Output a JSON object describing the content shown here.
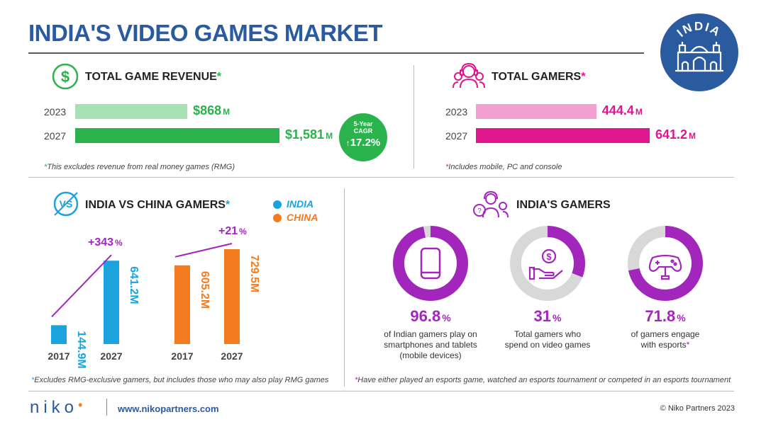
{
  "header": {
    "title": "INDIA'S VIDEO GAMES MARKET",
    "badge_label": "INDIA"
  },
  "revenue": {
    "title": "TOTAL GAME REVENUE",
    "asterisk": "*",
    "years": [
      "2023",
      "2027"
    ],
    "labels": [
      "$868",
      "$1,581"
    ],
    "unit": "M",
    "cagr_label": "5-Year CAGR",
    "cagr_value": "17.2%",
    "note_asterisk": "*",
    "note": "This excludes revenue from real money games (RMG)"
  },
  "gamers": {
    "title": "TOTAL GAMERS",
    "asterisk": "*",
    "years": [
      "2023",
      "2027"
    ],
    "labels": [
      "444.4",
      "641.2"
    ],
    "unit": "M",
    "note_asterisk": "*",
    "note": "Includes mobile, PC and console"
  },
  "vs": {
    "title": "INDIA VS CHINA GAMERS",
    "asterisk": "*",
    "legend": [
      "INDIA",
      "CHINA"
    ],
    "india_growth": "+343",
    "china_growth": "+21",
    "growth_unit": "%",
    "note_asterisk": "*",
    "note": "Excludes RMG-exclusive gamers, but includes those who may also play RMG games"
  },
  "india_gamers": {
    "title": "INDIA'S GAMERS",
    "stats": [
      {
        "value": "96.8",
        "unit": "%",
        "text": [
          "of Indian gamers play on",
          "smartphones and tablets",
          "(mobile devices)"
        ],
        "asterisk": ""
      },
      {
        "value": "31",
        "unit": "%",
        "text": [
          "Total gamers who",
          "spend on video games"
        ],
        "asterisk": ""
      },
      {
        "value": "71.8",
        "unit": "%",
        "text": [
          "of gamers engage",
          "with esports"
        ],
        "asterisk": "*"
      }
    ],
    "note_asterisk": "*",
    "note": "Have either played an esports game, watched an esports tournament or competed in an esports tournament"
  },
  "footer": {
    "logo": "NIKO",
    "url": "www.nikopartners.com",
    "copyright": "© Niko Partners 2023"
  },
  "colors": {
    "title_blue": "#2a5aa0",
    "green": "#2ab24c",
    "green_light": "#a8e2b4",
    "pink": "#e0168e",
    "pink_light": "#f2a0d2",
    "blue": "#1aa3dd",
    "orange": "#f47b20",
    "purple": "#a226bc",
    "grey": "#d8d8d8"
  },
  "chart_data": [
    {
      "type": "bar",
      "title": "TOTAL GAME REVENUE",
      "orientation": "horizontal",
      "categories": [
        "2023",
        "2027"
      ],
      "values": [
        868,
        1581
      ],
      "unit": "$M",
      "cagr_percent": 17.2
    },
    {
      "type": "bar",
      "title": "TOTAL GAMERS",
      "orientation": "horizontal",
      "categories": [
        "2023",
        "2027"
      ],
      "values": [
        444.4,
        641.2
      ],
      "unit": "M"
    },
    {
      "type": "bar",
      "title": "INDIA VS CHINA GAMERS",
      "categories": [
        "2017",
        "2027"
      ],
      "series": [
        {
          "name": "INDIA",
          "values": [
            144.9,
            641.2
          ],
          "labels": [
            "144.9",
            "641.2"
          ],
          "growth_percent": 343
        },
        {
          "name": "CHINA",
          "values": [
            605.2,
            729.5
          ],
          "labels": [
            "605.2",
            "729.5"
          ],
          "growth_percent": 21
        }
      ],
      "unit": "M"
    },
    {
      "type": "pie",
      "title": "INDIA'S GAMERS",
      "values": [
        96.8,
        31,
        71.8
      ],
      "unit": "%"
    }
  ]
}
